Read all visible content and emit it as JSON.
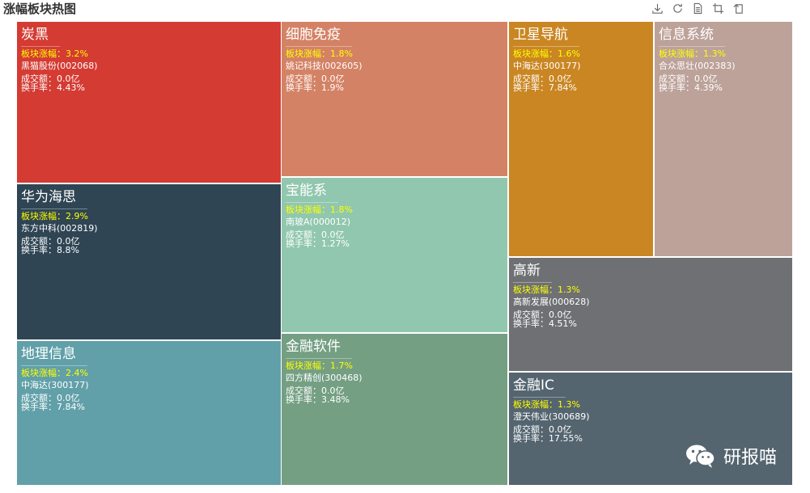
{
  "chart_data": {
    "type": "treemap",
    "title": "涨幅板块热图",
    "gain_label": "板块涨幅：",
    "amount_label": "成交额：",
    "turnover_label": "换手率：",
    "sectors": [
      {
        "name": "炭黑",
        "gain": "3.2%",
        "stock": "黑猫股份(002068)",
        "amount": "0.0亿",
        "turnover": "4.43%",
        "color": "#d43b33"
      },
      {
        "name": "华为海思",
        "gain": "2.9%",
        "stock": "东方中科(002819)",
        "amount": "0.0亿",
        "turnover": "8.8%",
        "color": "#2f4554"
      },
      {
        "name": "地理信息",
        "gain": "2.4%",
        "stock": "中海达(300177)",
        "amount": "0.0亿",
        "turnover": "7.84%",
        "color": "#61a0a8"
      },
      {
        "name": "细胞免疫",
        "gain": "1.8%",
        "stock": "姚记科技(002605)",
        "amount": "0.0亿",
        "turnover": "1.9%",
        "color": "#d48265"
      },
      {
        "name": "宝能系",
        "gain": "1.8%",
        "stock": "南玻A(000012)",
        "amount": "0.0亿",
        "turnover": "1.27%",
        "color": "#91c7ae"
      },
      {
        "name": "金融软件",
        "gain": "1.7%",
        "stock": "四方精创(300468)",
        "amount": "0.0亿",
        "turnover": "3.48%",
        "color": "#749f83"
      },
      {
        "name": "卫星导航",
        "gain": "1.6%",
        "stock": "中海达(300177)",
        "amount": "0.0亿",
        "turnover": "7.84%",
        "color": "#ca8622"
      },
      {
        "name": "信息系统",
        "gain": "1.3%",
        "stock": "合众思壮(002383)",
        "amount": "0.0亿",
        "turnover": "4.39%",
        "color": "#bda29a"
      },
      {
        "name": "高新",
        "gain": "1.3%",
        "stock": "高新发展(000628)",
        "amount": "0.0亿",
        "turnover": "4.51%",
        "color": "#6e7074"
      },
      {
        "name": "金融IC",
        "gain": "1.3%",
        "stock": "澄天伟业(300689)",
        "amount": "0.0亿",
        "turnover": "17.55%",
        "color": "#546570"
      }
    ]
  },
  "toolbox": [
    {
      "icon": "download-icon"
    },
    {
      "icon": "refresh-icon"
    },
    {
      "icon": "data-view-icon"
    },
    {
      "icon": "zoom-icon"
    },
    {
      "icon": "zoom-reset-icon"
    }
  ],
  "watermark": {
    "text": "研报喵",
    "icon": "wechat-icon"
  }
}
